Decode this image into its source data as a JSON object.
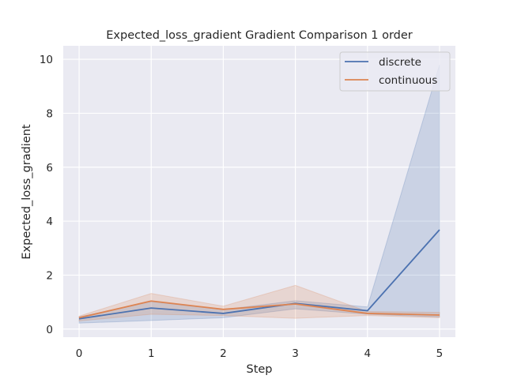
{
  "chart_data": {
    "type": "line",
    "title": "Expected_loss_gradient Gradient Comparison 1 order",
    "xlabel": "Step",
    "ylabel": "Expected_loss_gradient",
    "x": [
      0,
      1,
      2,
      3,
      4,
      5
    ],
    "xlim": [
      -0.22,
      5.22
    ],
    "ylim": [
      -0.3,
      10.5
    ],
    "xticks": [
      0,
      1,
      2,
      3,
      4,
      5
    ],
    "yticks": [
      0,
      2,
      4,
      6,
      8,
      10
    ],
    "grid": true,
    "legend_position": "top-right",
    "series": [
      {
        "name": "discrete",
        "color": "#4c72b0",
        "values": [
          0.38,
          0.78,
          0.58,
          0.95,
          0.68,
          3.68
        ],
        "band_lower": [
          0.22,
          0.32,
          0.42,
          0.75,
          0.55,
          0.45
        ],
        "band_upper": [
          0.45,
          1.02,
          0.72,
          1.05,
          0.82,
          9.8
        ]
      },
      {
        "name": "continuous",
        "color": "#dd8452",
        "values": [
          0.42,
          1.04,
          0.73,
          0.93,
          0.58,
          0.52
        ],
        "band_lower": [
          0.3,
          0.55,
          0.5,
          0.4,
          0.5,
          0.42
        ],
        "band_upper": [
          0.48,
          1.32,
          0.85,
          1.62,
          0.65,
          0.62
        ]
      }
    ]
  }
}
